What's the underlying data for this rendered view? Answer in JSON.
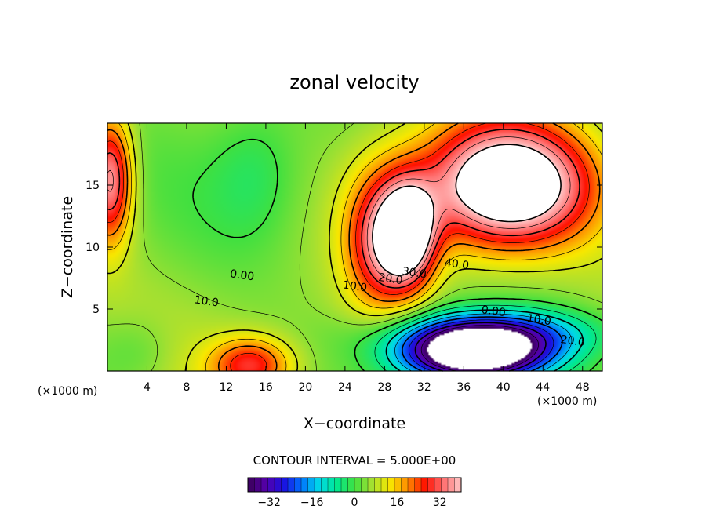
{
  "chart_data": {
    "type": "heatmap",
    "title": "zonal velocity",
    "xlabel": "X−coordinate",
    "ylabel": "Z−coordinate",
    "x_unit": "(×1000 m)",
    "y_unit": "(×1000 m)",
    "xlim": [
      0,
      50
    ],
    "ylim": [
      0,
      20
    ],
    "x_ticks": [
      4,
      8,
      12,
      16,
      20,
      24,
      28,
      32,
      36,
      40,
      44,
      48
    ],
    "x_tick_labels": [
      "4",
      "8",
      "12",
      "16",
      "20",
      "24",
      "28",
      "32",
      "36",
      "40",
      "44",
      "48"
    ],
    "y_ticks": [
      5,
      10,
      15
    ],
    "y_tick_labels": [
      "5",
      "10",
      "15"
    ],
    "contour_interval_text": "CONTOUR INTERVAL = 5.000E+00",
    "contour_interval": 5,
    "colorbar": {
      "range": [
        -40,
        40
      ],
      "ticks": [
        -32,
        -16,
        0,
        16,
        32
      ],
      "tick_labels": [
        "−32",
        "−16",
        "0",
        "16",
        "32"
      ]
    },
    "contour_labels": [
      {
        "text": "40.0",
        "x": 35.3,
        "y": 8.6
      },
      {
        "text": "30.0",
        "x": 31.0,
        "y": 7.9
      },
      {
        "text": "20.0",
        "x": 28.6,
        "y": 7.4
      },
      {
        "text": "10.0",
        "x": 25.0,
        "y": 6.8
      },
      {
        "text": "0.00",
        "x": 13.6,
        "y": 7.7
      },
      {
        "text": "10.0",
        "x": 10.0,
        "y": 5.6
      },
      {
        "text": "0.00",
        "x": 39.0,
        "y": 4.8
      },
      {
        "text": "10.0",
        "x": 43.6,
        "y": 4.1
      },
      {
        "text": "20.0",
        "x": 47.0,
        "y": 2.4
      }
    ],
    "features": [
      {
        "kind": "jet",
        "amp": 48,
        "cx": 40.5,
        "cz": 15.0,
        "sx": 8.5,
        "sz": 5.0
      },
      {
        "kind": "jet",
        "amp": 38,
        "cx": 30.5,
        "cz": 11.0,
        "sx": 2.8,
        "sz": 4.2
      },
      {
        "kind": "jet",
        "amp": 26,
        "cx": 27.5,
        "cz": 10.5,
        "sx": 3.5,
        "sz": 5.5
      },
      {
        "kind": "jet",
        "amp": 32,
        "cx": 0.3,
        "cz": 15.5,
        "sx": 2.2,
        "sz": 5.0
      },
      {
        "kind": "jet",
        "amp": 22,
        "cx": 14.5,
        "cz": 0.5,
        "sx": 4.0,
        "sz": 2.2
      },
      {
        "kind": "jet",
        "amp": -55,
        "cx": 37.0,
        "cz": 1.3,
        "sx": 7.2,
        "sz": 2.2
      },
      {
        "kind": "jet",
        "amp": -24,
        "cx": 39.0,
        "cz": 3.0,
        "sx": 10.0,
        "sz": 2.0
      },
      {
        "kind": "jet",
        "amp": -6,
        "cx": 15.0,
        "cz": 16.0,
        "sx": 4.5,
        "sz": 5.5
      },
      {
        "kind": "jet",
        "amp": -5,
        "cx": 3.0,
        "cz": 1.5,
        "sx": 4.0,
        "sz": 3.0
      }
    ],
    "background_value": 5,
    "masked_above": 40,
    "masked_below": -40,
    "colors": {
      "scale": [
        "#3a0058",
        "#5500a8",
        "#1a10e0",
        "#0070ff",
        "#00d8e8",
        "#00e890",
        "#40e040",
        "#a8e030",
        "#f8e800",
        "#ff8800",
        "#ff1000",
        "#ff7070",
        "#ffc8c8"
      ]
    }
  }
}
